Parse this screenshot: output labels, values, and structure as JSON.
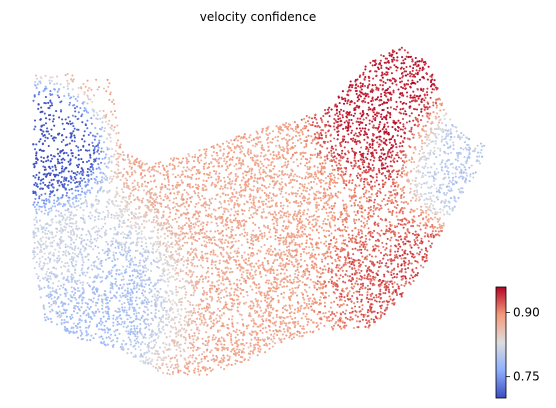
{
  "chart_data": {
    "type": "scatter",
    "title": "velocity confidence",
    "xlabel": "",
    "ylabel": "",
    "grid": false,
    "colormap": "coolwarm",
    "colors": {
      "low": "#3b4cc0",
      "mid": "#dddddd",
      "high": "#b40426"
    },
    "colorbar": {
      "range": [
        0.7,
        0.96
      ],
      "ticks": [
        0.75,
        0.9
      ],
      "tick_labels": [
        "0.75",
        "0.90"
      ],
      "placement": "bottom-right"
    },
    "point_count_approx": 9000,
    "regions": [
      {
        "region": "upper-left cluster",
        "value": 0.7
      },
      {
        "region": "left-center band",
        "value": 0.82
      },
      {
        "region": "lower-left lobe",
        "value": 0.78
      },
      {
        "region": "central body",
        "value": 0.88
      },
      {
        "region": "right column",
        "value": 0.95
      },
      {
        "region": "right-lower",
        "value": 0.93
      },
      {
        "region": "far-right tip",
        "value": 0.8
      }
    ]
  }
}
